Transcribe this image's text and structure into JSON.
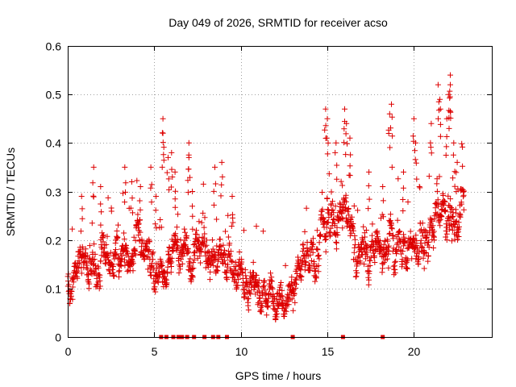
{
  "chart_data": {
    "type": "scatter",
    "title": "Day 049 of 2026, SRMTID for receiver acso",
    "xlabel": "GPS time / hours",
    "ylabel": "SRMTID / TECUs",
    "xlim": [
      0,
      24.5
    ],
    "ylim": [
      0,
      0.6
    ],
    "xticks": [
      0,
      5,
      10,
      15,
      20
    ],
    "xtick_labels": [
      "0",
      "5",
      "10",
      "15",
      "20"
    ],
    "yticks": [
      0,
      0.1,
      0.2,
      0.3,
      0.4,
      0.5,
      0.6
    ],
    "ytick_labels": [
      "0",
      "0.1",
      "0.2",
      "0.3",
      "0.4",
      "0.5",
      "0.6"
    ],
    "grid": true,
    "marker": "plus",
    "color": "#dd0000",
    "series": [
      {
        "name": "SRMTID",
        "x_start": 0.0,
        "x_end": 22.9,
        "approx_points": 1600,
        "baseline_profile": {
          "hours": [
            0,
            1,
            2,
            3,
            4,
            5,
            6,
            7,
            8,
            9,
            10,
            11,
            12,
            13,
            14,
            15,
            16,
            17,
            18,
            19,
            20,
            21,
            22,
            22.9
          ],
          "typical": [
            0.11,
            0.14,
            0.17,
            0.17,
            0.19,
            0.16,
            0.15,
            0.18,
            0.18,
            0.17,
            0.14,
            0.1,
            0.1,
            0.12,
            0.14,
            0.22,
            0.24,
            0.19,
            0.17,
            0.19,
            0.18,
            0.25,
            0.28,
            0.25
          ]
        },
        "peaks": [
          {
            "x": 0.8,
            "y": 0.29
          },
          {
            "x": 1.5,
            "y": 0.35
          },
          {
            "x": 1.9,
            "y": 0.31
          },
          {
            "x": 3.3,
            "y": 0.35
          },
          {
            "x": 3.7,
            "y": 0.32
          },
          {
            "x": 4.2,
            "y": 0.31
          },
          {
            "x": 4.8,
            "y": 0.35
          },
          {
            "x": 5.1,
            "y": 0.29
          },
          {
            "x": 5.5,
            "y": 0.45
          },
          {
            "x": 5.5,
            "y": 0.42
          },
          {
            "x": 5.8,
            "y": 0.37
          },
          {
            "x": 6.0,
            "y": 0.38
          },
          {
            "x": 6.2,
            "y": 0.34
          },
          {
            "x": 7.0,
            "y": 0.4
          },
          {
            "x": 7.0,
            "y": 0.37
          },
          {
            "x": 7.2,
            "y": 0.3
          },
          {
            "x": 8.5,
            "y": 0.35
          },
          {
            "x": 8.9,
            "y": 0.36
          },
          {
            "x": 9.5,
            "y": 0.29
          },
          {
            "x": 14.9,
            "y": 0.47
          },
          {
            "x": 15.0,
            "y": 0.45
          },
          {
            "x": 15.5,
            "y": 0.4
          },
          {
            "x": 16.0,
            "y": 0.47
          },
          {
            "x": 16.1,
            "y": 0.44
          },
          {
            "x": 16.3,
            "y": 0.41
          },
          {
            "x": 17.4,
            "y": 0.34
          },
          {
            "x": 18.2,
            "y": 0.31
          },
          {
            "x": 18.6,
            "y": 0.46
          },
          {
            "x": 18.7,
            "y": 0.48
          },
          {
            "x": 19.4,
            "y": 0.34
          },
          {
            "x": 20.0,
            "y": 0.45
          },
          {
            "x": 20.1,
            "y": 0.4
          },
          {
            "x": 21.0,
            "y": 0.44
          },
          {
            "x": 21.4,
            "y": 0.52
          },
          {
            "x": 21.5,
            "y": 0.49
          },
          {
            "x": 21.9,
            "y": 0.45
          },
          {
            "x": 22.1,
            "y": 0.54
          },
          {
            "x": 22.1,
            "y": 0.52
          },
          {
            "x": 22.0,
            "y": 0.5
          },
          {
            "x": 22.3,
            "y": 0.4
          },
          {
            "x": 22.5,
            "y": 0.36
          }
        ],
        "zero_points_x": [
          5.4,
          5.7,
          6.1,
          6.4,
          6.6,
          6.9,
          7.3,
          7.9,
          8.4,
          8.7,
          9.2,
          13.0,
          15.9,
          18.2
        ]
      }
    ]
  }
}
